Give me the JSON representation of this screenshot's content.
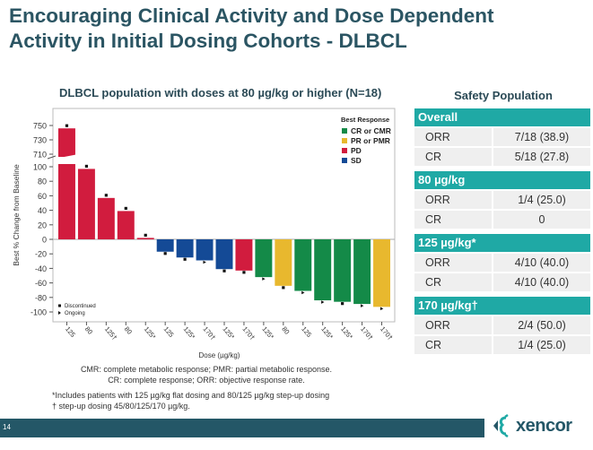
{
  "slide": {
    "title_line1": "Encouraging Clinical Activity and Dose Dependent",
    "title_line2": "Activity in Initial Dosing Cohorts - DLBCL",
    "page_number": "14",
    "logo_text": "xencor"
  },
  "chart_data": {
    "type": "bar",
    "title": "DLBCL population with doses at 80 µg/kg or higher (N=18)",
    "xlabel": "Dose (µg/kg)",
    "ylabel": "Best % Change from Baseline",
    "ylim": [
      -100,
      750
    ],
    "axis_break": {
      "lower_max": 100,
      "upper_min": 710
    },
    "yticks_upper": [
      750,
      730,
      710
    ],
    "yticks_lower": [
      100,
      80,
      60,
      40,
      20,
      0,
      -20,
      -40,
      -60,
      -80,
      -100
    ],
    "categories": [
      "125",
      "80",
      "125†",
      "80",
      "125*",
      "125",
      "125*",
      "170†",
      "125*",
      "170†",
      "125*",
      "80",
      "125",
      "125*",
      "125*",
      "170†",
      "170†"
    ],
    "values": [
      746,
      97,
      57,
      39,
      2,
      -17,
      -25,
      -29,
      -41,
      -43,
      -52,
      -64,
      -71,
      -84,
      -86,
      -89,
      -93
    ],
    "responses": [
      "PD",
      "PD",
      "PD",
      "PD",
      "PD",
      "SD",
      "SD",
      "SD",
      "SD",
      "PD",
      "CR or CMR",
      "PR or PMR",
      "CR or CMR",
      "CR or CMR",
      "CR or CMR",
      "CR or CMR",
      "PR or PMR"
    ],
    "status": [
      "Discontinued",
      "Discontinued",
      "Discontinued",
      "Discontinued",
      "Discontinued",
      "Discontinued",
      "Discontinued",
      "Ongoing",
      "Discontinued",
      "Discontinued",
      "Ongoing",
      "Discontinued",
      "Ongoing",
      "Ongoing",
      "Discontinued",
      "Ongoing",
      "Ongoing"
    ],
    "legend": {
      "title": "Best Response",
      "placement": "top-right",
      "items": [
        {
          "label": "CR or CMR",
          "color": "#148a48"
        },
        {
          "label": "PR or PMR",
          "color": "#e8b82e"
        },
        {
          "label": "PD",
          "color": "#d11c3e"
        },
        {
          "label": "SD",
          "color": "#144a96"
        }
      ]
    },
    "marker_legend": {
      "placement": "bottom-left",
      "items": [
        {
          "label": "Discontinued",
          "marker": "square"
        },
        {
          "label": "Ongoing",
          "marker": "triangle"
        }
      ]
    },
    "grid": false
  },
  "notes": {
    "line1": "CMR: complete metabolic response; PMR: partial metabolic response.",
    "line2": "CR: complete response; ORR: objective response rate.",
    "line3": "*Includes patients with 125 µg/kg flat dosing and 80/125 µg/kg step-up dosing",
    "line4": "† step-up dosing 45/80/125/170 µg/kg."
  },
  "safety": {
    "title": "Safety Population",
    "header_color": "#1fa9a5",
    "groups": [
      {
        "name": "Overall",
        "rows": [
          {
            "k": "ORR",
            "v": "7/18 (38.9)"
          },
          {
            "k": "CR",
            "v": "5/18 (27.8)"
          }
        ]
      },
      {
        "name": "80 µg/kg",
        "rows": [
          {
            "k": "ORR",
            "v": "1/4 (25.0)"
          },
          {
            "k": "CR",
            "v": "0"
          }
        ]
      },
      {
        "name": "125 µg/kg*",
        "rows": [
          {
            "k": "ORR",
            "v": "4/10 (40.0)"
          },
          {
            "k": "CR",
            "v": "4/10 (40.0)"
          }
        ]
      },
      {
        "name": "170 µg/kg†",
        "rows": [
          {
            "k": "ORR",
            "v": "2/4 (50.0)"
          },
          {
            "k": "CR",
            "v": "1/4 (25.0)"
          }
        ]
      }
    ]
  }
}
